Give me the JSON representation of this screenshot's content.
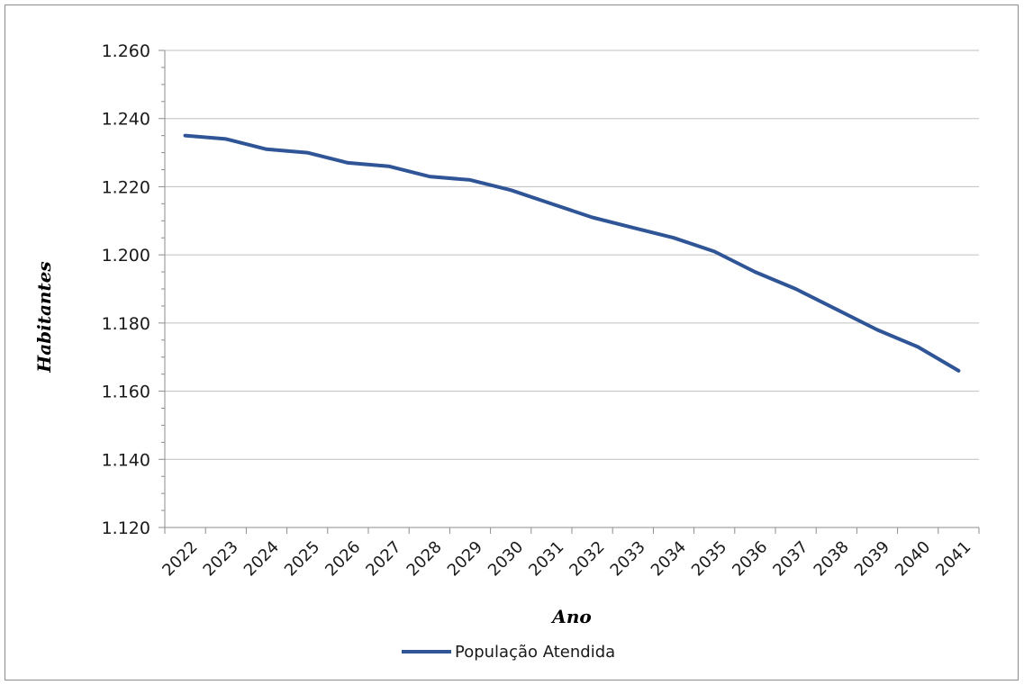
{
  "chart_data": {
    "type": "line",
    "title": "",
    "xlabel": "Ano",
    "ylabel": "Habitantes",
    "categories": [
      "2022",
      "2023",
      "2024",
      "2025",
      "2026",
      "2027",
      "2028",
      "2029",
      "2030",
      "2031",
      "2032",
      "2033",
      "2034",
      "2035",
      "2036",
      "2037",
      "2038",
      "2039",
      "2040",
      "2041"
    ],
    "series": [
      {
        "name": "População Atendida",
        "color": "#2f5597",
        "values": [
          1235,
          1234,
          1231,
          1230,
          1227,
          1226,
          1223,
          1222,
          1219,
          1215,
          1211,
          1208,
          1205,
          1201,
          1195,
          1190,
          1184,
          1178,
          1173,
          1166
        ]
      }
    ],
    "ylim": [
      1120,
      1260
    ],
    "yticks": [
      1120,
      1140,
      1160,
      1180,
      1200,
      1220,
      1240,
      1260
    ],
    "ytick_labels": [
      "1.120",
      "1.140",
      "1.160",
      "1.180",
      "1.200",
      "1.220",
      "1.240",
      "1.260"
    ],
    "grid": true,
    "legend_position": "bottom"
  }
}
